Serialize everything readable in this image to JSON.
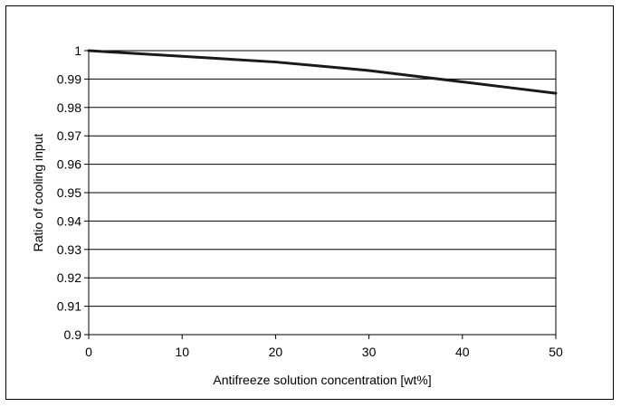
{
  "chart_data": {
    "type": "line",
    "title": "",
    "xlabel": "Antifreeze solution concentration [wt%]",
    "ylabel": "Ratio of cooling input",
    "xlim": [
      0,
      50
    ],
    "ylim": [
      0.9,
      1.0
    ],
    "x_ticks": [
      "0",
      "10",
      "20",
      "30",
      "40",
      "50"
    ],
    "y_ticks": [
      "1",
      "0.99",
      "0.98",
      "0.97",
      "0.96",
      "0.95",
      "0.94",
      "0.93",
      "0.92",
      "0.91",
      "0.9"
    ],
    "grid": "horizontal",
    "legend": "none",
    "series": [
      {
        "x": [
          0,
          5,
          10,
          15,
          20,
          25,
          30,
          35,
          40,
          45,
          50
        ],
        "y": [
          1.0,
          0.999,
          0.998,
          0.997,
          0.996,
          0.9945,
          0.993,
          0.991,
          0.989,
          0.987,
          0.985
        ],
        "color": "#1a1a1a"
      }
    ]
  }
}
